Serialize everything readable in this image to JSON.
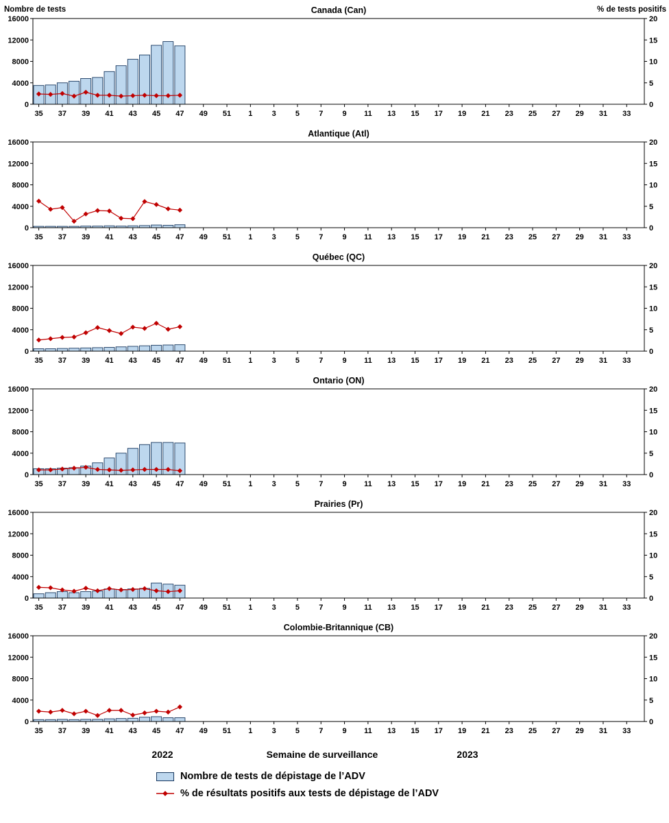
{
  "header": {
    "left_axis_label": "Nombre de tests",
    "right_axis_label": "% de tests positifs"
  },
  "footer": {
    "year_left": "2022",
    "axis_title": "Semaine de surveillance",
    "year_right": "2023"
  },
  "legend": {
    "bar_label": "Nombre de tests de dépistage de l’ADV",
    "line_label": "% de résultats positifs aux tests de dépistage de l’ADV"
  },
  "chart_data": {
    "type": "bar+line small multiples",
    "x_slot_count": 52,
    "x_tick_labels": [
      "35",
      "37",
      "39",
      "41",
      "43",
      "45",
      "47",
      "49",
      "51",
      "1",
      "3",
      "5",
      "7",
      "9",
      "11",
      "13",
      "15",
      "17",
      "19",
      "21",
      "23",
      "25",
      "27",
      "29",
      "31",
      "33"
    ],
    "data_weeks": [
      35,
      36,
      37,
      38,
      39,
      40,
      41,
      42,
      43,
      44,
      45,
      46,
      47
    ],
    "ylim_left": [
      0,
      16000
    ],
    "ylim_right": [
      0,
      20
    ],
    "y_left_ticks": [
      0,
      4000,
      8000,
      12000,
      16000
    ],
    "y_right_ticks": [
      0,
      5,
      10,
      15,
      20
    ],
    "grid": false,
    "legend_position": "bottom",
    "colors": {
      "bar_fill": "#BDD7EE",
      "bar_stroke": "#17375E",
      "line": "#C00000",
      "frame": "#000000"
    },
    "panels": [
      {
        "title": "Canada (Can)",
        "series": [
          {
            "name": "tests",
            "values": [
              3500,
              3600,
              4000,
              4300,
              4800,
              5000,
              6100,
              7200,
              8400,
              9200,
              11000,
              11700,
              10900
            ]
          },
          {
            "name": "pct_positive",
            "values": [
              2.4,
              2.3,
              2.5,
              1.9,
              2.8,
              2.1,
              2.1,
              1.9,
              2.0,
              2.1,
              2.0,
              2.0,
              2.1
            ]
          }
        ]
      },
      {
        "title": "Atlantique (Atl)",
        "series": [
          {
            "name": "tests",
            "values": [
              250,
              250,
              250,
              250,
              300,
              300,
              350,
              300,
              350,
              400,
              500,
              450,
              550
            ]
          },
          {
            "name": "pct_positive",
            "values": [
              6.2,
              4.3,
              4.7,
              1.5,
              3.2,
              4.0,
              3.9,
              2.2,
              2.1,
              6.1,
              5.4,
              4.4,
              4.1
            ]
          }
        ]
      },
      {
        "title": "Québec (QC)",
        "series": [
          {
            "name": "tests",
            "values": [
              450,
              450,
              500,
              550,
              600,
              650,
              700,
              800,
              900,
              1000,
              1100,
              1150,
              1200
            ]
          },
          {
            "name": "pct_positive",
            "values": [
              2.6,
              2.9,
              3.2,
              3.3,
              4.3,
              5.5,
              4.8,
              4.1,
              5.6,
              5.3,
              6.5,
              5.1,
              5.7
            ]
          }
        ]
      },
      {
        "title": "Ontario (ON)",
        "series": [
          {
            "name": "tests",
            "values": [
              1100,
              1100,
              1200,
              1300,
              1600,
              2200,
              3100,
              4000,
              4900,
              5600,
              6000,
              6000,
              5900
            ]
          },
          {
            "name": "pct_positive",
            "values": [
              1.1,
              1.1,
              1.3,
              1.5,
              1.7,
              1.2,
              1.1,
              1.0,
              1.1,
              1.2,
              1.2,
              1.2,
              0.9
            ]
          }
        ]
      },
      {
        "title": "Prairies (Pr)",
        "series": [
          {
            "name": "tests",
            "values": [
              800,
              1000,
              1200,
              1000,
              1200,
              1300,
              1700,
              1600,
              1700,
              1800,
              2800,
              2600,
              2400
            ]
          },
          {
            "name": "pct_positive",
            "values": [
              2.5,
              2.4,
              1.9,
              1.6,
              2.3,
              1.7,
              2.2,
              1.9,
              2.0,
              2.2,
              1.7,
              1.5,
              1.7
            ]
          }
        ]
      },
      {
        "title": "Colombie-Britannique (CB)",
        "series": [
          {
            "name": "tests",
            "values": [
              350,
              350,
              400,
              350,
              400,
              400,
              500,
              550,
              600,
              800,
              900,
              700,
              700
            ]
          },
          {
            "name": "pct_positive",
            "values": [
              2.4,
              2.2,
              2.6,
              1.8,
              2.4,
              1.4,
              2.6,
              2.6,
              1.5,
              2.0,
              2.4,
              2.2,
              3.4
            ]
          }
        ]
      }
    ]
  }
}
